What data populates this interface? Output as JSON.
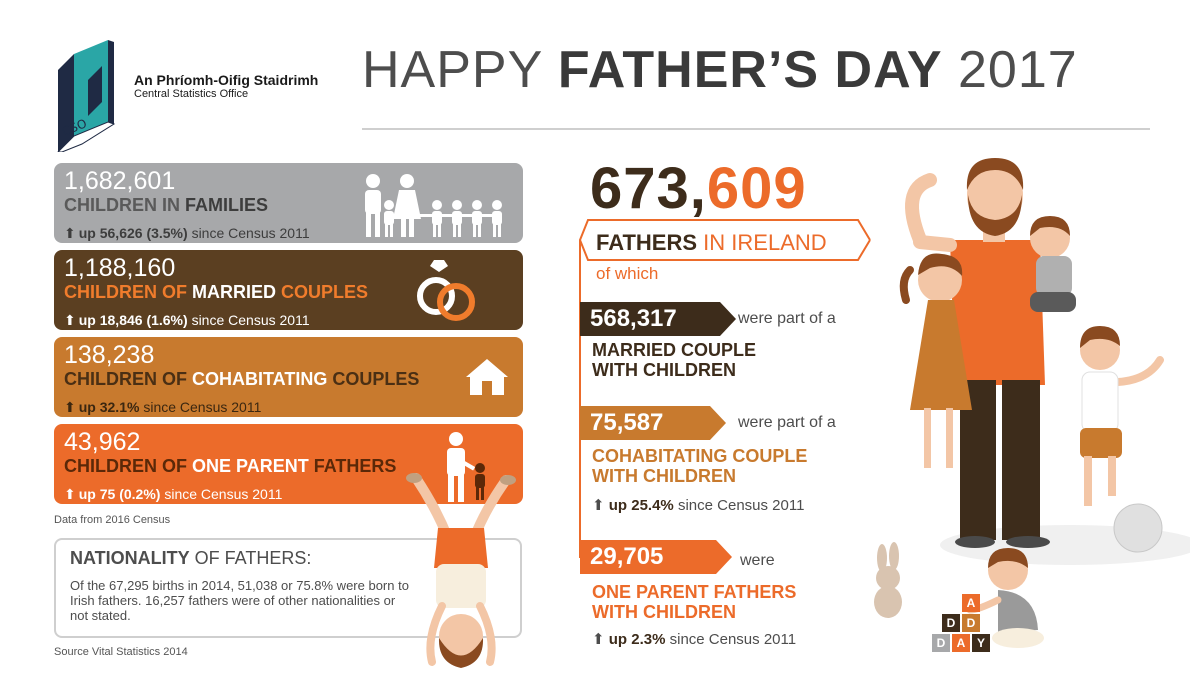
{
  "header": {
    "org_name_irish": "An Phríomh-Oifig Staidrimh",
    "org_name_english": "Central Statistics Office",
    "logo_letters": "CSO",
    "title_part1": "HAPPY",
    "title_part2": "FATHER’S DAY",
    "title_part3": "2017"
  },
  "children_stats": [
    {
      "number": "1,682,601",
      "label_part1": "CHILDREN IN",
      "label_part2": "FAMILIES",
      "label_part3": "",
      "change_bold": "up 56,626 (3.5%)",
      "change_rest": "since Census 2011",
      "icon": "family-icon"
    },
    {
      "number": "1,188,160",
      "label_part1": "CHILDREN OF",
      "label_part2": "MARRIED",
      "label_part3": "COUPLES",
      "change_bold": "up 18,846 (1.6%)",
      "change_rest": "since Census 2011",
      "icon": "wedding-rings-icon"
    },
    {
      "number": "138,238",
      "label_part1": "CHILDREN OF",
      "label_part2": "COHABITATING",
      "label_part3": "COUPLES",
      "change_bold": "up 32.1%",
      "change_rest": "since Census 2011",
      "icon": "house-icon"
    },
    {
      "number": "43,962",
      "label_part1": "CHILDREN OF",
      "label_part2": "ONE PARENT",
      "label_part3": "FATHERS",
      "change_bold": "up 75 (0.2%)",
      "change_rest": "since Census 2011",
      "icon": "father-child-icon"
    }
  ],
  "data_source_census": "Data from 2016 Census",
  "nationality": {
    "title_bold": "NATIONALITY",
    "title_rest": "OF FATHERS:",
    "text": "Of the 67,295 births in 2014, 51,038 or 75.8% were  born to Irish fathers. 16,257 fathers were of other nationalities or not stated.",
    "source": "Source Vital Statistics 2014"
  },
  "fathers": {
    "total_part1": "673,",
    "total_part2": "609",
    "label_part1": "FATHERS",
    "label_part2": "IN IRELAND",
    "of_which": "of which",
    "groups": [
      {
        "number": "568,317",
        "were": "were part of a",
        "line1": "MARRIED COUPLE",
        "line2": "WITH CHILDREN",
        "change_bold": "",
        "change_rest": ""
      },
      {
        "number": "75,587",
        "were": "were part of a",
        "line1": "COHABITATING COUPLE",
        "line2": "WITH CHILDREN",
        "change_bold": "up 25.4%",
        "change_rest": "since Census 2011"
      },
      {
        "number": "29,705",
        "were": "were",
        "line1": "ONE PARENT FATHERS",
        "line2": "WITH CHILDREN",
        "change_bold": "up 2.3%",
        "change_rest": "since Census 2011"
      }
    ]
  },
  "illustration": {
    "blocks": [
      "A",
      "D",
      "D",
      "D",
      "A",
      "Y"
    ]
  },
  "colors": {
    "dark_brown": "#3d2c1b",
    "brown": "#5b3f21",
    "tan": "#c87a2e",
    "orange": "#ec6b2a",
    "grey": "#a7a8aa"
  }
}
